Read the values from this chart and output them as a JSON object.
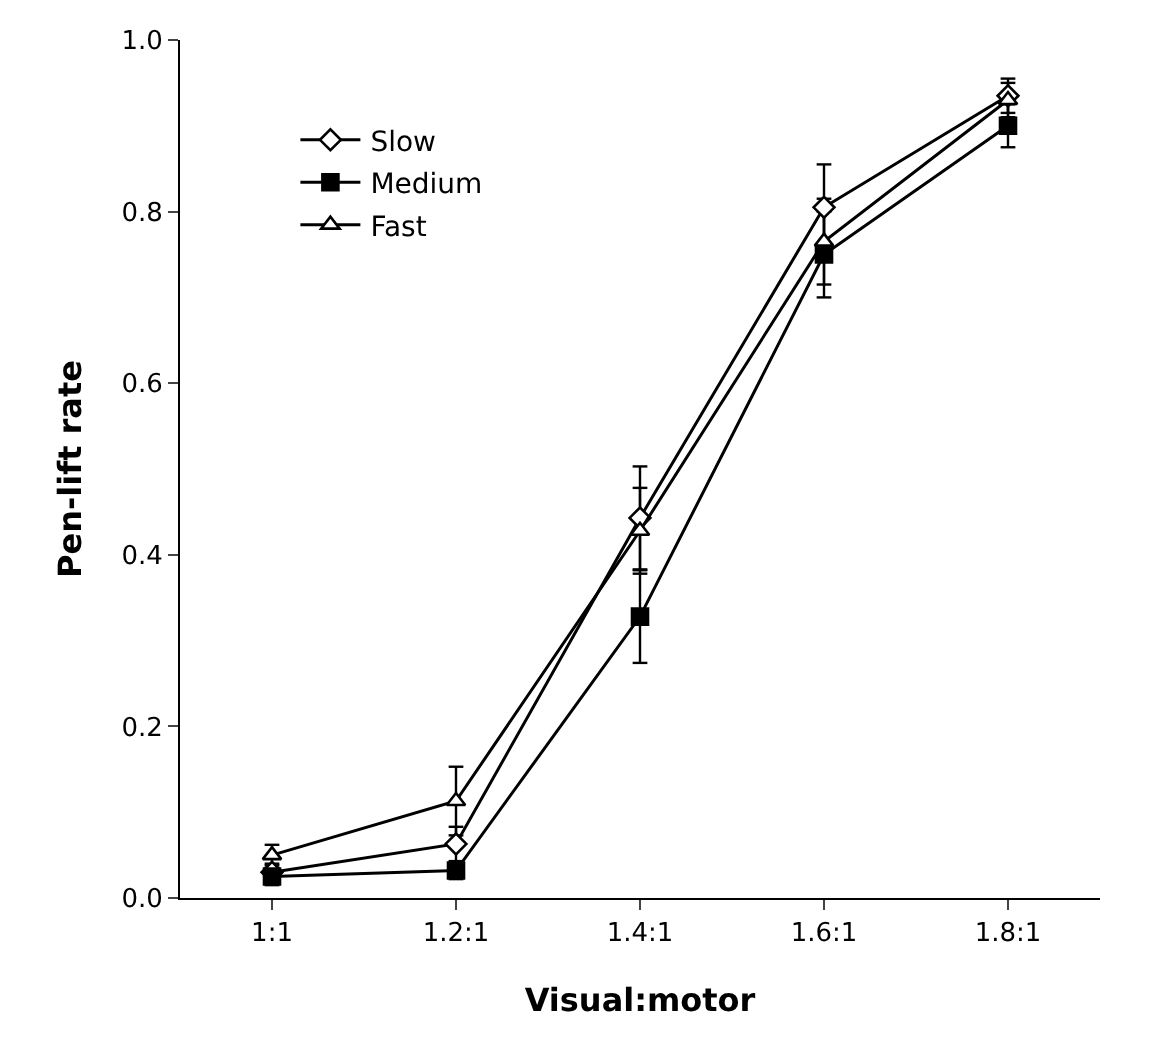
{
  "chart_data": {
    "type": "line",
    "xlabel": "Visual:motor",
    "ylabel": "Pen-lift rate",
    "categories": [
      "1:1",
      "1.2:1",
      "1.4:1",
      "1.6:1",
      "1.8:1"
    ],
    "series": [
      {
        "name": "Slow",
        "color": "#000000",
        "marker": "diamond",
        "values": [
          0.03,
          0.063,
          0.443,
          0.805,
          0.935
        ],
        "errors": [
          0.01,
          0.02,
          0.06,
          0.05,
          0.02
        ]
      },
      {
        "name": "Medium",
        "color": "#000000",
        "marker": "square",
        "values": [
          0.025,
          0.032,
          0.328,
          0.75,
          0.9
        ],
        "errors": [
          0.01,
          0.01,
          0.054,
          0.05,
          0.025
        ]
      },
      {
        "name": "Fast",
        "color": "#000000",
        "marker": "triangle",
        "values": [
          0.05,
          0.113,
          0.428,
          0.765,
          0.93
        ],
        "errors": [
          0.012,
          0.04,
          0.05,
          0.05,
          0.02
        ]
      }
    ],
    "ylim": [
      0,
      1
    ],
    "yticks": [
      {
        "value": 0,
        "label": "0.0"
      },
      0.2,
      0.4,
      0.6,
      0.8,
      {
        "value": 1,
        "label": "1.0"
      }
    ],
    "grid": false,
    "legend": "top left",
    "line_style": "solid"
  }
}
